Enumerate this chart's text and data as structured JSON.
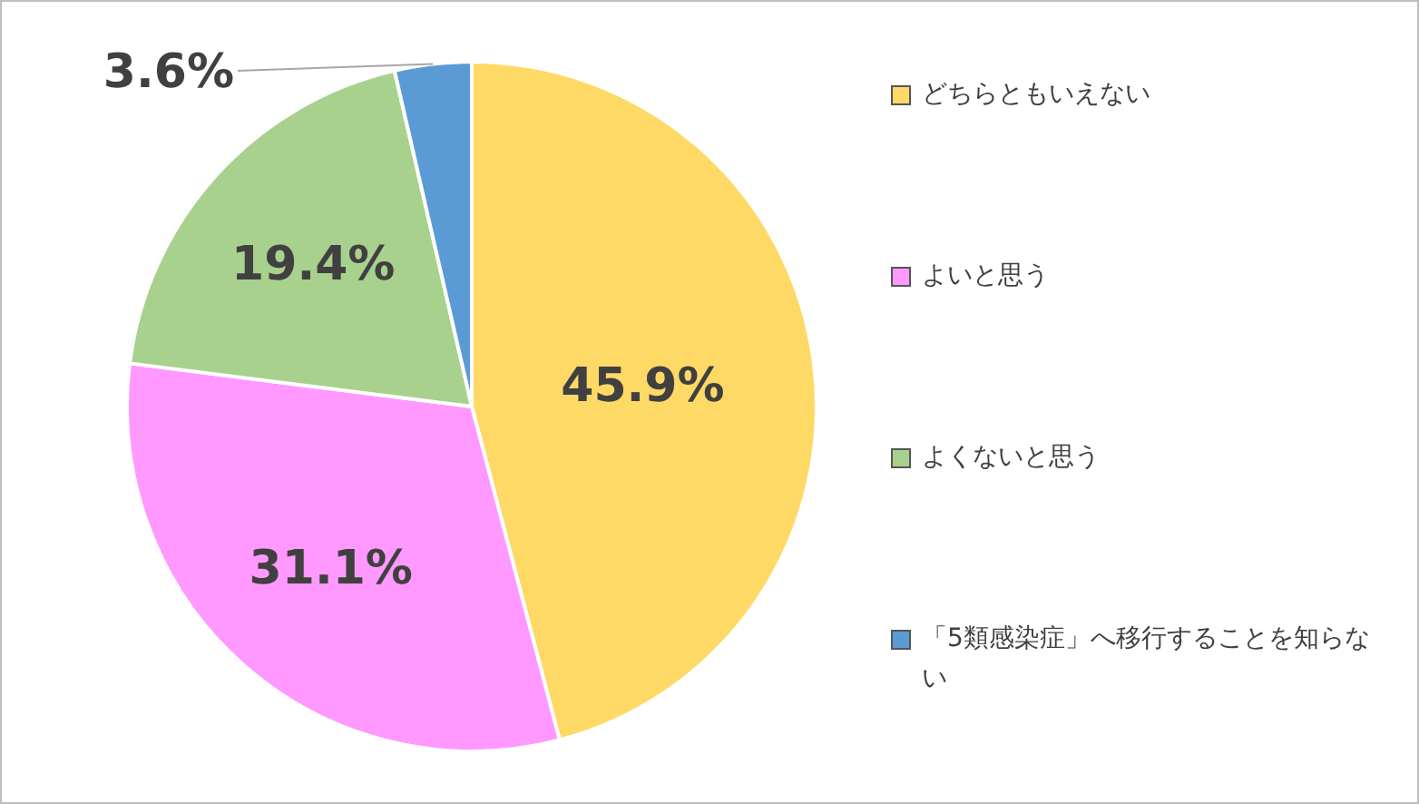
{
  "chart_data": {
    "type": "pie",
    "categories": [
      "どちらともいえない",
      "よいと思う",
      "よくないと思う",
      "「5類感染症」へ移行することを知らない"
    ],
    "values": [
      45.9,
      31.1,
      19.4,
      3.6
    ],
    "colors": [
      "#ffd966",
      "#ff99ff",
      "#a9d18e",
      "#5b9bd5"
    ],
    "value_labels": [
      "45.9%",
      "31.1%",
      "19.4%",
      "3.6%"
    ],
    "legend": "right"
  }
}
